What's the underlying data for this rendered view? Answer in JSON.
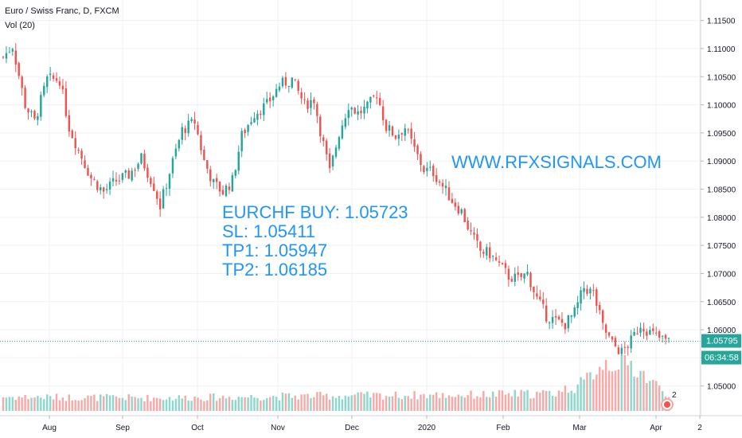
{
  "legend": {
    "title": "Euro / Swiss Franc, D, FXCM",
    "volume": "Vol (20)"
  },
  "annotation": {
    "line1": "EURCHF BUY: 1.05723",
    "line2": "SL: 1.05411",
    "line3": "TP1: 1.05947",
    "line4": "TP2: 1.06185",
    "website": "WWW.RFXSIGNALS.COM"
  },
  "price_label": {
    "last": "1.05795",
    "countdown": "06:34:58"
  },
  "event_badge": "2",
  "colors": {
    "up": "#26a69a",
    "down": "#ef5350",
    "up_volume": "#8fd6cd",
    "down_volume": "#f7a9a7",
    "text_accent": "#2196f3",
    "price_line": "#26a69a",
    "grid": "#eef0f3"
  },
  "chart_data": {
    "type": "candlestick",
    "y_axis": {
      "range": [
        1.045,
        1.1175
      ],
      "ticks": [
        "1.11500",
        "1.11000",
        "1.10500",
        "1.10000",
        "1.09500",
        "1.09000",
        "1.08500",
        "1.08000",
        "1.07500",
        "1.07000",
        "1.06500",
        "1.06000",
        "1.05500",
        "1.05000"
      ]
    },
    "x_axis": {
      "ticks": [
        "Aug",
        "Sep",
        "Oct",
        "Nov",
        "Dec",
        "2020",
        "Feb",
        "Mar",
        "Apr",
        "2"
      ]
    },
    "last_price": 1.05795,
    "close_path": [
      [
        0,
        1.1085
      ],
      [
        3,
        1.1105
      ],
      [
        7,
        1.1
      ],
      [
        10,
        1.097
      ],
      [
        14,
        1.1045
      ],
      [
        18,
        1.1045
      ],
      [
        21,
        1.096
      ],
      [
        24,
        1.092
      ],
      [
        28,
        1.087
      ],
      [
        32,
        1.0845
      ],
      [
        36,
        1.0865
      ],
      [
        40,
        1.0875
      ],
      [
        44,
        1.0905
      ],
      [
        48,
        1.0855
      ],
      [
        50,
        1.082
      ],
      [
        53,
        1.088
      ],
      [
        57,
        1.0955
      ],
      [
        61,
        1.097
      ],
      [
        64,
        1.09
      ],
      [
        67,
        1.086
      ],
      [
        70,
        1.0845
      ],
      [
        73,
        1.0865
      ],
      [
        76,
        1.0945
      ],
      [
        80,
        1.0985
      ],
      [
        84,
        1.1
      ],
      [
        88,
        1.1035
      ],
      [
        92,
        1.1045
      ],
      [
        96,
        1.1
      ],
      [
        99,
        1.101
      ],
      [
        101,
        1.0955
      ],
      [
        104,
        1.088
      ],
      [
        107,
        1.095
      ],
      [
        110,
        1.1
      ],
      [
        113,
        1.0985
      ],
      [
        116,
        1.0995
      ],
      [
        119,
        1.102
      ],
      [
        122,
        1.096
      ],
      [
        125,
        1.0945
      ],
      [
        128,
        1.096
      ],
      [
        131,
        1.092
      ],
      [
        134,
        1.0885
      ],
      [
        137,
        1.088
      ],
      [
        140,
        1.0855
      ],
      [
        143,
        1.083
      ],
      [
        146,
        1.081
      ],
      [
        149,
        1.077
      ],
      [
        152,
        1.074
      ],
      [
        155,
        1.0735
      ],
      [
        158,
        1.0715
      ],
      [
        161,
        1.0695
      ],
      [
        164,
        1.069
      ],
      [
        167,
        1.07
      ],
      [
        170,
        1.0655
      ],
      [
        173,
        1.0625
      ],
      [
        176,
        1.0615
      ],
      [
        179,
        1.061
      ],
      [
        182,
        1.063
      ],
      [
        185,
        1.0675
      ],
      [
        188,
        1.0665
      ],
      [
        191,
        1.0605
      ],
      [
        194,
        1.0575
      ],
      [
        197,
        1.056
      ],
      [
        200,
        1.058
      ],
      [
        203,
        1.061
      ],
      [
        206,
        1.0595
      ],
      [
        209,
        1.0585
      ],
      [
        212,
        1.0579
      ]
    ],
    "volume_profile": [
      [
        0,
        0.28
      ],
      [
        50,
        0.26
      ],
      [
        100,
        0.3
      ],
      [
        150,
        0.32
      ],
      [
        175,
        0.35
      ],
      [
        185,
        0.55
      ],
      [
        190,
        0.95
      ],
      [
        196,
        1.0
      ],
      [
        202,
        0.85
      ],
      [
        207,
        0.55
      ],
      [
        212,
        0.35
      ]
    ]
  }
}
